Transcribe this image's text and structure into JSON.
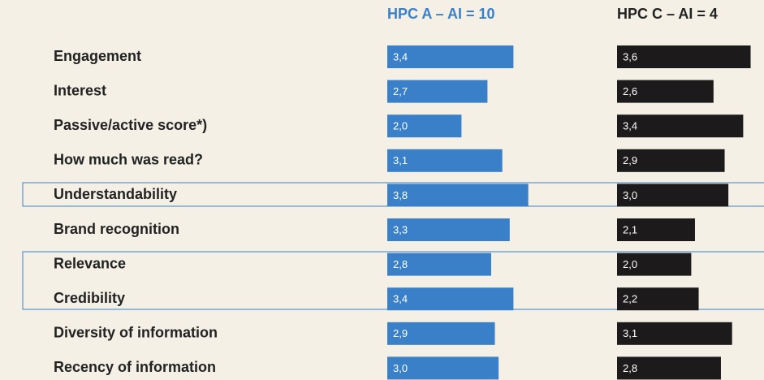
{
  "chart_data": {
    "type": "bar",
    "orientation": "horizontal",
    "categories": [
      "Engagement",
      "Interest",
      "Passive/active score*)",
      "How much was read?",
      "Understandability",
      "Brand recognition",
      "Relevance",
      "Credibility",
      "Diversity of information",
      "Recency of information"
    ],
    "series": [
      {
        "name": "HPC A – AI = 10",
        "color": "#3a80c8",
        "values": [
          3.4,
          2.7,
          2.0,
          3.1,
          3.8,
          3.3,
          2.8,
          3.4,
          2.9,
          3.0
        ],
        "value_labels": [
          "3,4",
          "2,7",
          "2,0",
          "3,1",
          "3,8",
          "3,3",
          "2,8",
          "3,4",
          "2,9",
          "3,0"
        ]
      },
      {
        "name": "HPC C – AI = 4",
        "color": "#1c1a1a",
        "values": [
          3.6,
          2.6,
          3.4,
          2.9,
          3.0,
          2.1,
          2.0,
          2.2,
          3.1,
          2.8
        ],
        "value_labels": [
          "3,6",
          "2,6",
          "3,4",
          "2,9",
          "3,0",
          "2,1",
          "2,0",
          "2,2",
          "3,1",
          "2,8"
        ]
      }
    ]
  }
}
